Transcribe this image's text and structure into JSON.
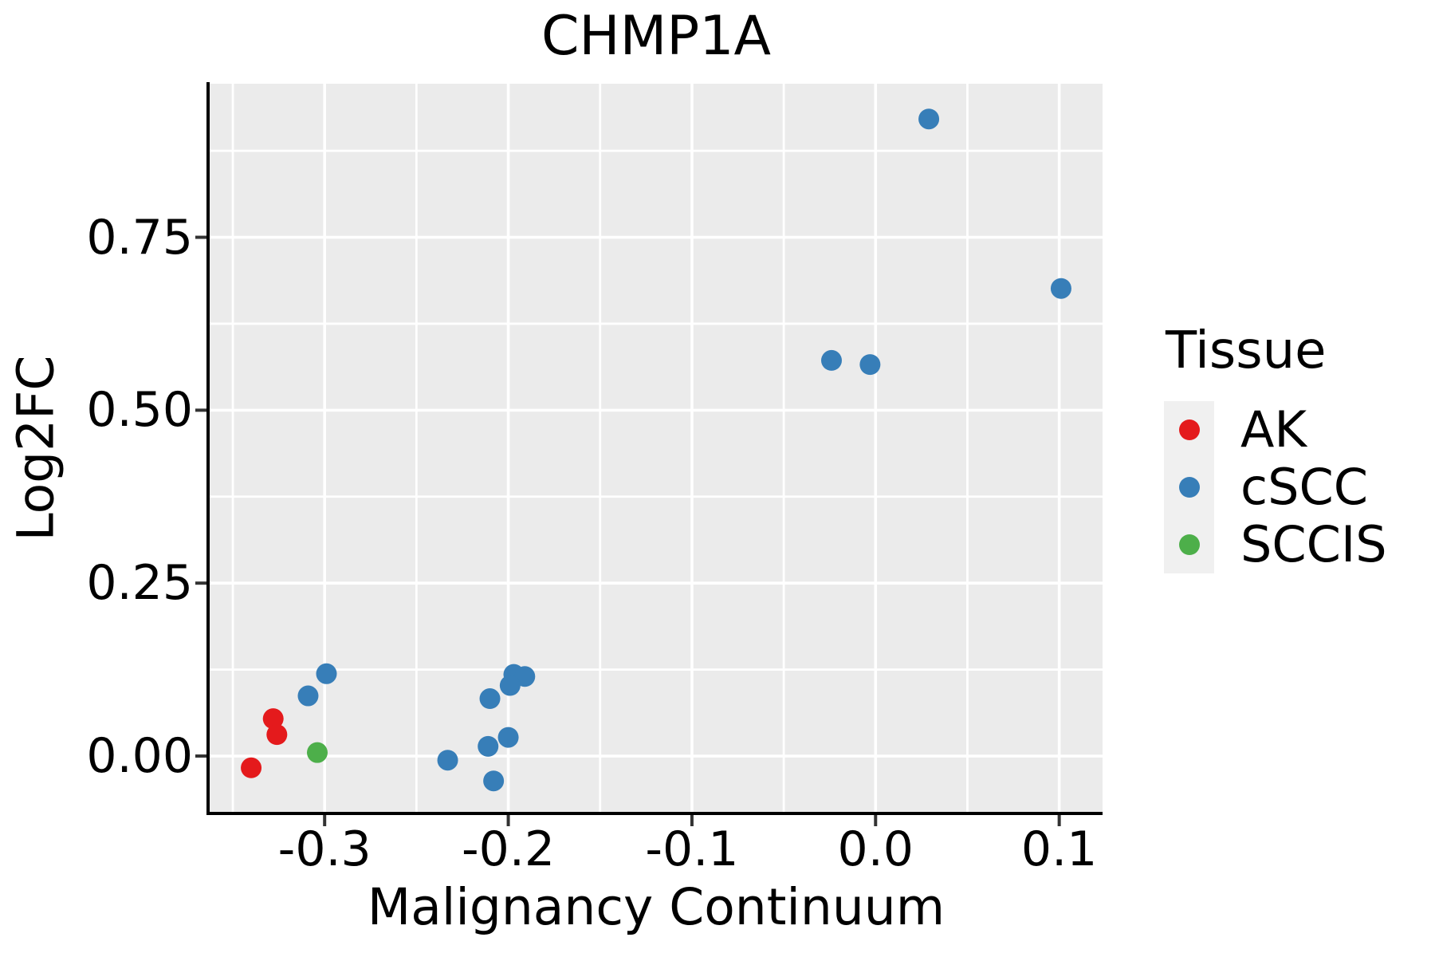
{
  "title": "CHMP1A",
  "x_axis": {
    "label": "Malignancy Continuum",
    "tick_labels": [
      "-0.3",
      "-0.2",
      "-0.1",
      "0.0",
      "0.1"
    ]
  },
  "y_axis": {
    "label": "Log2FC",
    "tick_labels": [
      "0.00",
      "0.25",
      "0.50",
      "0.75"
    ]
  },
  "legend": {
    "title": "Tissue",
    "items": [
      {
        "label": "AK",
        "color": "#E41A1C"
      },
      {
        "label": "cSCC",
        "color": "#377EB8"
      },
      {
        "label": "SCCIS",
        "color": "#4DAF4A"
      }
    ]
  },
  "colors": {
    "panel_background": "#EBEBEB",
    "gridline": "#FFFFFF",
    "axis_line": "#000000",
    "tick_mark": "#333333",
    "legend_key_background": "#F0F0F0",
    "text": "#000000"
  },
  "chart_data": {
    "type": "scatter",
    "title": "CHMP1A",
    "xlabel": "Malignancy Continuum",
    "ylabel": "Log2FC",
    "xlim": [
      -0.3626,
      0.1236
    ],
    "ylim": [
      -0.083,
      0.972
    ],
    "x_ticks": [
      -0.3,
      -0.2,
      -0.1,
      0.0,
      0.1
    ],
    "y_ticks": [
      0.0,
      0.25,
      0.5,
      0.75
    ],
    "x_minor_gridlines": [
      -0.35,
      -0.25,
      -0.15,
      -0.05,
      0.05
    ],
    "y_minor_gridlines": [
      0.125,
      0.375,
      0.625,
      0.875
    ],
    "grid": "on",
    "legend_position": "right",
    "point_radius_px": 13,
    "series": [
      {
        "name": "AK",
        "color": "#E41A1C",
        "points": [
          [
            -0.328,
            0.054
          ],
          [
            -0.326,
            0.031
          ],
          [
            -0.34,
            -0.017
          ]
        ]
      },
      {
        "name": "cSCC",
        "color": "#377EB8",
        "points": [
          [
            -0.299,
            0.119
          ],
          [
            -0.309,
            0.087
          ],
          [
            -0.197,
            0.118
          ],
          [
            -0.191,
            0.115
          ],
          [
            -0.199,
            0.102
          ],
          [
            -0.21,
            0.083
          ],
          [
            -0.2,
            0.027
          ],
          [
            -0.211,
            0.014
          ],
          [
            -0.233,
            -0.006
          ],
          [
            -0.208,
            -0.036
          ],
          [
            -0.024,
            0.572
          ],
          [
            -0.003,
            0.566
          ],
          [
            0.029,
            0.921
          ],
          [
            0.101,
            0.676
          ]
        ]
      },
      {
        "name": "SCCIS",
        "color": "#4DAF4A",
        "points": [
          [
            -0.304,
            0.005
          ]
        ]
      }
    ]
  }
}
